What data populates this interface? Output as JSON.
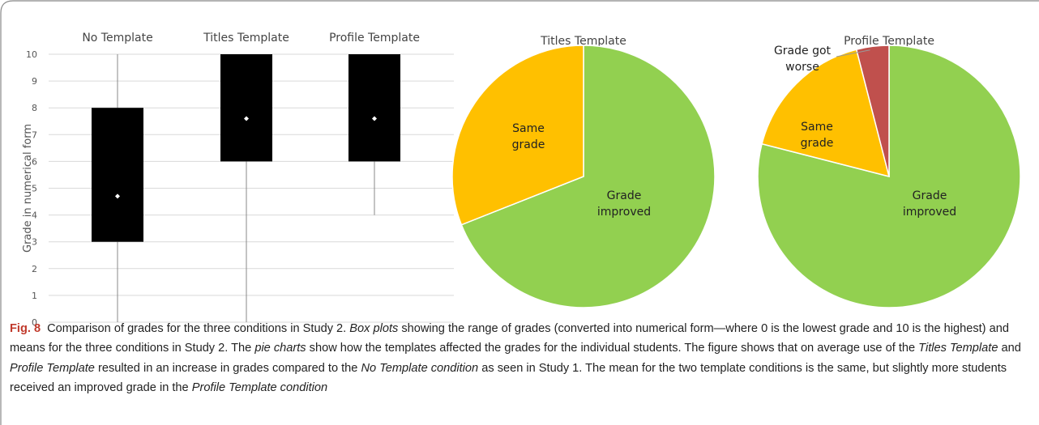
{
  "chart_data": [
    {
      "type": "box",
      "categories": [
        "No Template",
        "Titles Template",
        "Profile Template"
      ],
      "y_label": "Grade in numerical form",
      "min": [
        0,
        0,
        4
      ],
      "q1": [
        3,
        6,
        6
      ],
      "q3": [
        8,
        10,
        10
      ],
      "max": [
        10,
        10,
        10
      ],
      "mean": [
        4.7,
        7.6,
        7.6
      ],
      "ylim": [
        0,
        10
      ],
      "yticks": [
        0,
        1,
        2,
        3,
        4,
        5,
        6,
        7,
        8,
        9,
        10
      ],
      "grid": true,
      "color": "#000000"
    },
    {
      "type": "pie",
      "title": "Titles Template",
      "categories": [
        "Grade improved",
        "Same grade"
      ],
      "values": [
        69,
        31
      ],
      "colors": [
        "#92d050",
        "#ffc000"
      ]
    },
    {
      "type": "pie",
      "title": "Profile Template",
      "categories": [
        "Grade improved",
        "Same grade",
        "Grade got worse"
      ],
      "values": [
        79,
        17,
        4
      ],
      "colors": [
        "#92d050",
        "#ffc000",
        "#c0504d"
      ]
    }
  ],
  "caption": {
    "label": "Fig. 8",
    "runs": [
      {
        "text": "Comparison of grades for the three conditions in Study 2. ",
        "italic": false
      },
      {
        "text": "Box plots",
        "italic": true
      },
      {
        "text": " showing the range of grades (converted into numerical form—where 0 is the lowest grade and 10 is the highest) and means for the three conditions in Study 2. The ",
        "italic": false
      },
      {
        "text": "pie charts",
        "italic": true
      },
      {
        "text": " show how the templates affected the grades for the individual students. The figure shows that on average use of the ",
        "italic": false
      },
      {
        "text": "Titles Template",
        "italic": true
      },
      {
        "text": " and ",
        "italic": false
      },
      {
        "text": "Profile Template",
        "italic": true
      },
      {
        "text": " resulted in an increase in grades compared to the ",
        "italic": false
      },
      {
        "text": "No Template condition",
        "italic": true
      },
      {
        "text": " as seen in Study 1. The mean for the two template conditions is the same, but slightly more students received an improved grade in the ",
        "italic": false
      },
      {
        "text": "Profile Template condition",
        "italic": true
      }
    ]
  }
}
